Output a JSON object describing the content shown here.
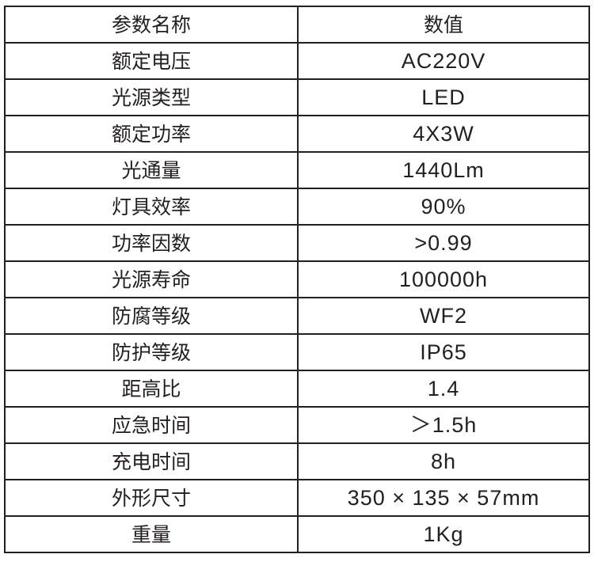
{
  "table": {
    "headers": [
      "参数名称",
      "数值"
    ],
    "rows": [
      [
        "额定电压",
        "AC220V"
      ],
      [
        "光源类型",
        "LED"
      ],
      [
        "额定功率",
        "4X3W"
      ],
      [
        "光通量",
        "1440Lm"
      ],
      [
        "灯具效率",
        "90%"
      ],
      [
        "功率因数",
        ">0.99"
      ],
      [
        "光源寿命",
        "100000h"
      ],
      [
        "防腐等级",
        "WF2"
      ],
      [
        "防护等级",
        "IP65"
      ],
      [
        "距高比",
        "1.4"
      ],
      [
        "应急时间",
        "＞1.5h"
      ],
      [
        "充电时间",
        "8h"
      ],
      [
        "外形尺寸",
        "350 × 135 × 57mm"
      ],
      [
        "重量",
        "1Kg"
      ]
    ]
  }
}
